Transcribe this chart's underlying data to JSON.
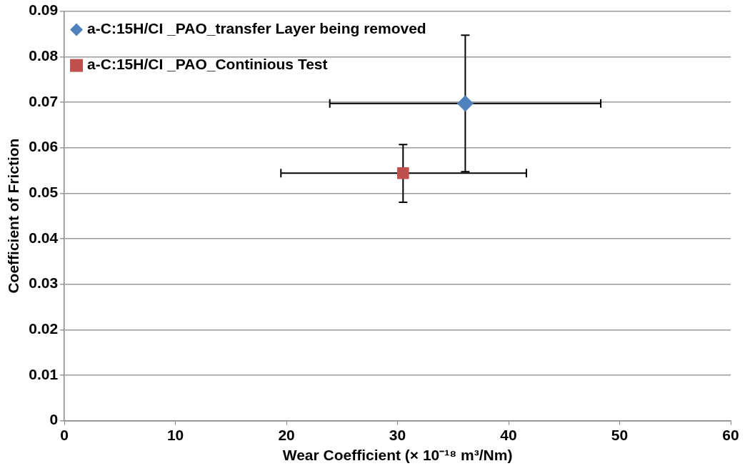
{
  "chart_data": {
    "type": "scatter",
    "xlabel": "Wear Coefficient (× 10⁻¹⁸ m³/Nm)",
    "ylabel": "Coefficient of Friction",
    "series": [
      {
        "name": "a-C:15H/CI _PAO_transfer Layer being removed",
        "color": "#4f81bd",
        "marker": "diamond",
        "x": [
          36.1
        ],
        "values": [
          0.0697
        ],
        "errors": [
          [
            0.0547,
            0.0847
          ]
        ],
        "xerrors": [
          [
            23.9,
            48.3
          ]
        ]
      },
      {
        "name": "a-C:15H/CI _PAO_Continious Test",
        "color": "#c0504d",
        "marker": "square",
        "x": [
          30.5
        ],
        "values": [
          0.0544
        ],
        "errors": [
          [
            0.048,
            0.0607
          ]
        ],
        "xerrors": [
          [
            19.5,
            41.6
          ]
        ]
      }
    ],
    "xlim": [
      0,
      60
    ],
    "xticks": [
      0,
      10,
      20,
      30,
      40,
      50,
      60
    ],
    "ylim": [
      0,
      0.09
    ],
    "yticks": [
      0,
      0.01,
      0.02,
      0.03,
      0.04,
      0.05,
      0.06,
      0.07,
      0.08,
      0.09
    ],
    "grid": "y",
    "legend": "top left"
  }
}
